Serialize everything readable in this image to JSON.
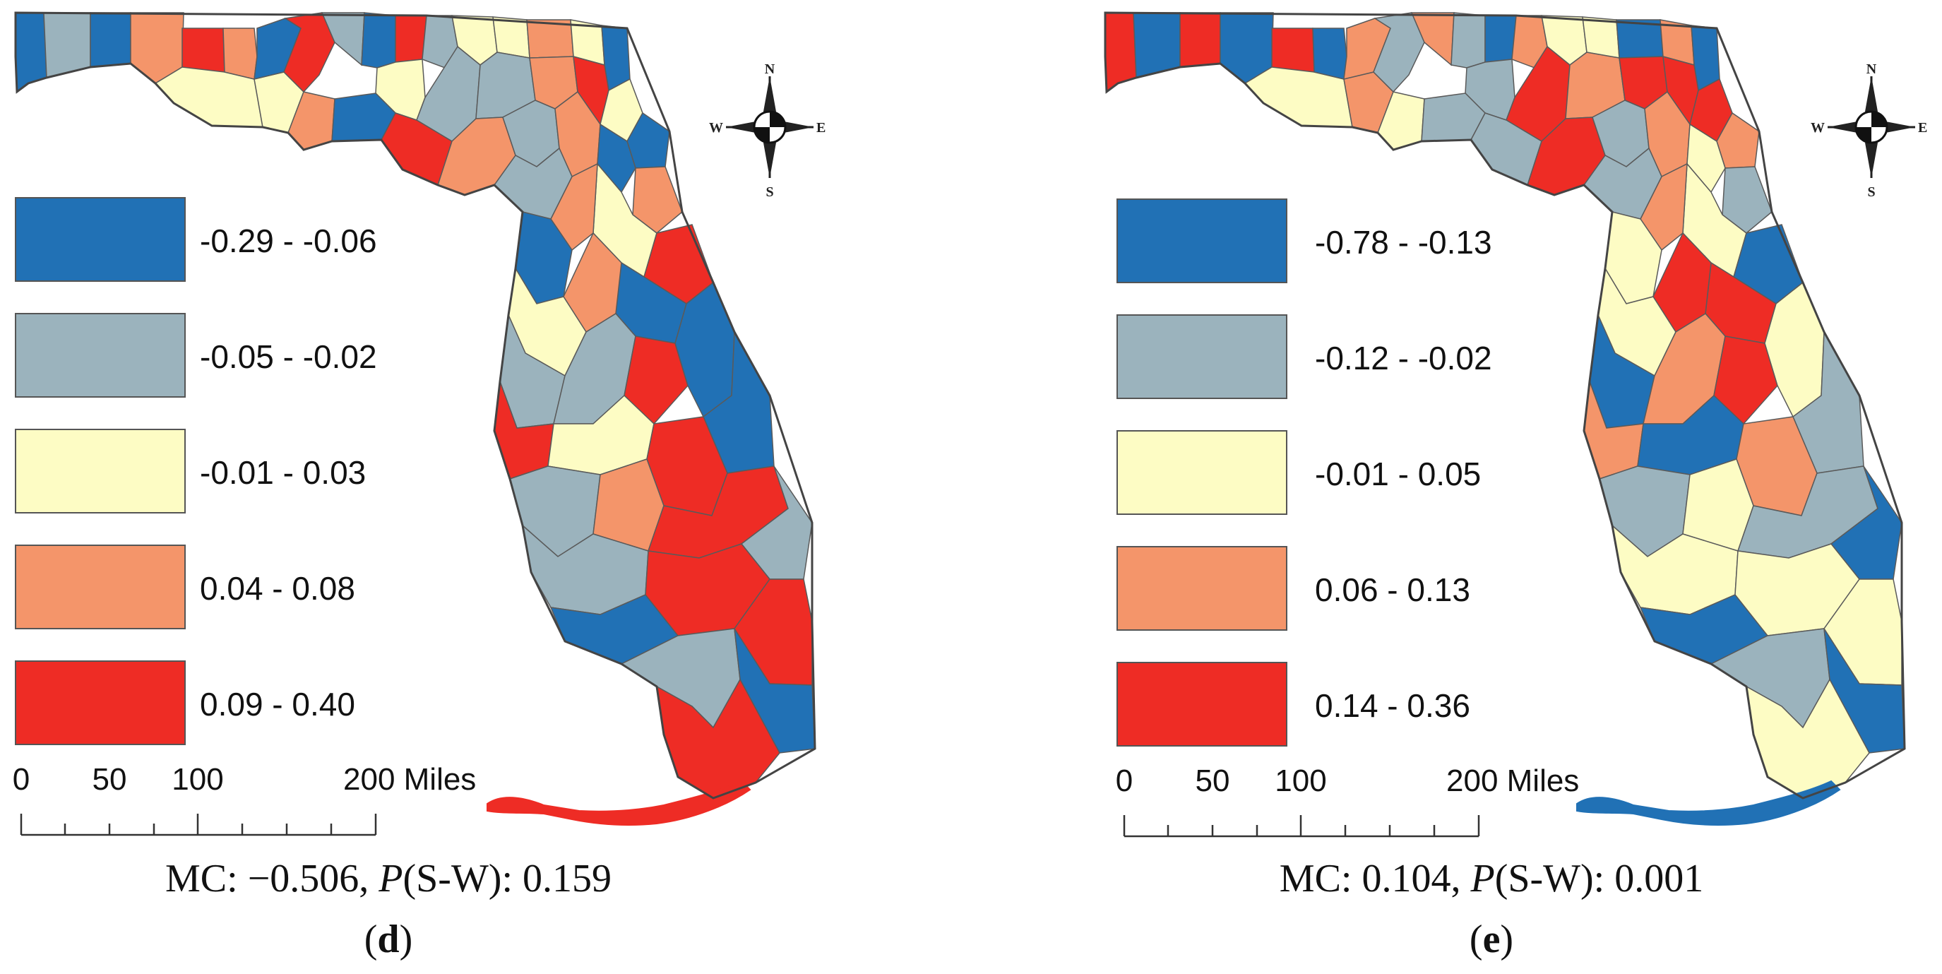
{
  "colors": {
    "blue": "#2171b5",
    "gray": "#9bb3bd",
    "yellow": "#fdfcc4",
    "orange": "#f4956a",
    "red": "#ee2c25",
    "border": "#5a5a5a"
  },
  "compass": {
    "n": "N",
    "s": "S",
    "e": "E",
    "w": "W"
  },
  "scale_bar": {
    "ticks": [
      "0",
      "50",
      "100"
    ],
    "end_label": "200 Miles"
  },
  "panels": [
    {
      "id": "d",
      "letter": "d",
      "stat": {
        "mc_label": "MC: ",
        "mc_value": "−0.506",
        "p_label": "P",
        "sw_label": "(S-W): ",
        "sw_value": "0.159"
      },
      "legend": [
        {
          "label": "-0.29 - -0.06",
          "color_key": "blue"
        },
        {
          "label": "-0.05 - -0.02",
          "color_key": "gray"
        },
        {
          "label": "-0.01 - 0.03",
          "color_key": "yellow"
        },
        {
          "label": "0.04 - 0.08",
          "color_key": "orange"
        },
        {
          "label": "0.09 - 0.40",
          "color_key": "red"
        }
      ],
      "county_classes": [
        "blue",
        "gray",
        "blue",
        "orange",
        "red",
        "yellow",
        "orange",
        "yellow",
        "blue",
        "red",
        "gray",
        "blue",
        "red",
        "yellow",
        "orange",
        "blue",
        "gray",
        "yellow",
        "yellow",
        "orange",
        "yellow",
        "blue",
        "gray",
        "gray",
        "orange",
        "red",
        "yellow",
        "blue",
        "red",
        "orange",
        "gray",
        "orange",
        "blue",
        "orange",
        "yellow",
        "orange",
        "gray",
        "blue",
        "red",
        "blue",
        "orange",
        "yellow",
        "gray",
        "gray",
        "red",
        "blue",
        "red",
        "yellow",
        "blue",
        "red",
        "gray",
        "orange",
        "red",
        "gray",
        "gray",
        "blue",
        "red",
        "gray",
        "red",
        "blue",
        "red"
      ],
      "keys_color": "red"
    },
    {
      "id": "e",
      "letter": "e",
      "stat": {
        "mc_label": "MC: ",
        "mc_value": "0.104",
        "p_label": "P",
        "sw_label": "(S-W): ",
        "sw_value": "0.001"
      },
      "legend": [
        {
          "label": "-0.78 - -0.13",
          "color_key": "blue"
        },
        {
          "label": "-0.12 - -0.02",
          "color_key": "gray"
        },
        {
          "label": "-0.01 - 0.05",
          "color_key": "yellow"
        },
        {
          "label": "0.06 - 0.13",
          "color_key": "orange"
        },
        {
          "label": "0.14 - 0.36",
          "color_key": "red"
        }
      ],
      "county_classes": [
        "red",
        "blue",
        "red",
        "blue",
        "red",
        "yellow",
        "blue",
        "orange",
        "orange",
        "gray",
        "orange",
        "gray",
        "blue",
        "gray",
        "yellow",
        "gray",
        "orange",
        "yellow",
        "yellow",
        "blue",
        "orange",
        "blue",
        "red",
        "orange",
        "red",
        "red",
        "red",
        "orange",
        "gray",
        "red",
        "gray",
        "orange",
        "yellow",
        "gray",
        "yellow",
        "orange",
        "gray",
        "yellow",
        "blue",
        "red",
        "red",
        "yellow",
        "blue",
        "orange",
        "red",
        "yellow",
        "orange",
        "blue",
        "gray",
        "orange",
        "gray",
        "yellow",
        "gray",
        "blue",
        "yellow",
        "blue",
        "yellow",
        "gray",
        "yellow",
        "blue",
        "yellow"
      ],
      "keys_color": "blue"
    }
  ]
}
